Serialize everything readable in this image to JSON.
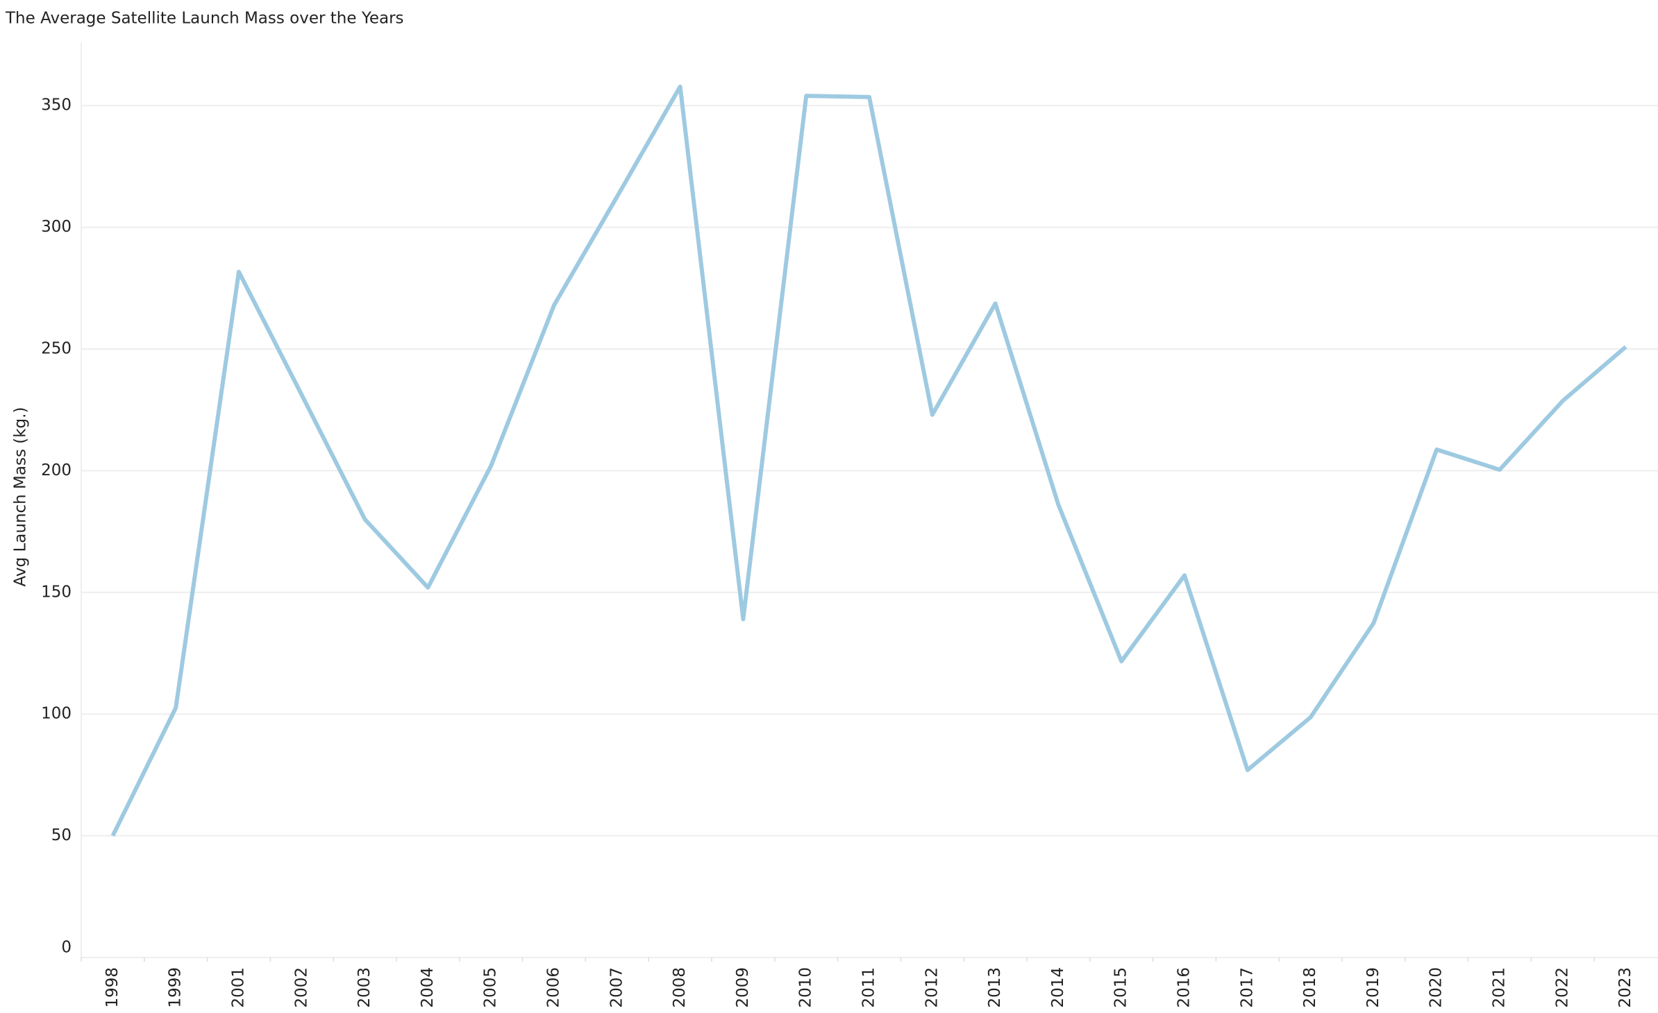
{
  "chart_data": {
    "type": "line",
    "title": "The Average Satellite Launch Mass over the Years",
    "y_label": "Avg Launch Mass (kg.)",
    "categories": [
      "1998",
      "1999",
      "2001",
      "2002",
      "2003",
      "2004",
      "2005",
      "2006",
      "2007",
      "2008",
      "2009",
      "2010",
      "2011",
      "2012",
      "2013",
      "2014",
      "2015",
      "2016",
      "2017",
      "2018",
      "2019",
      "2020",
      "2021",
      "2022",
      "2023"
    ],
    "series": [
      {
        "name": "Avg Launch Mass",
        "color": "#9ecae1",
        "values": [
          50,
          102.6,
          281.7,
          231,
          180,
          152,
          202,
          268,
          312.6,
          357.8,
          139,
          354,
          353.5,
          223,
          268.7,
          186,
          121.7,
          157,
          77,
          98.7,
          137.4,
          208.7,
          200.4,
          228.7,
          250.9
        ]
      }
    ],
    "ylim": [
      0,
      376
    ],
    "yticks": [
      0,
      50,
      100,
      150,
      200,
      250,
      300,
      350
    ],
    "grid": true
  }
}
